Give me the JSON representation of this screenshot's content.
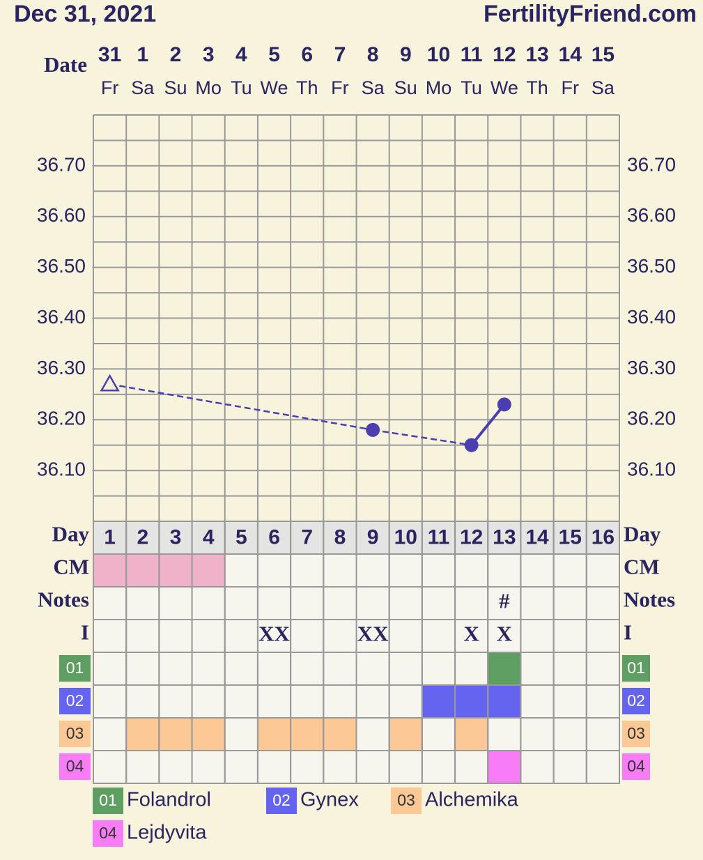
{
  "header": {
    "date": "Dec 31, 2021",
    "site": "FertilityFriend.com"
  },
  "chart_data": {
    "type": "line",
    "x_label": "Date",
    "categories": [
      "31",
      "1",
      "2",
      "3",
      "4",
      "5",
      "6",
      "7",
      "8",
      "9",
      "10",
      "11",
      "12",
      "13",
      "14",
      "15"
    ],
    "weekdays": [
      "Fr",
      "Sa",
      "Su",
      "Mo",
      "Tu",
      "We",
      "Th",
      "Fr",
      "Sa",
      "Su",
      "Mo",
      "Tu",
      "We",
      "Th",
      "Fr",
      "Sa"
    ],
    "series": [
      {
        "color": "#4b3fb0",
        "values": [
          36.27,
          null,
          null,
          null,
          null,
          null,
          null,
          null,
          36.18,
          null,
          null,
          36.15,
          36.23,
          null,
          null,
          null
        ]
      }
    ],
    "markers": [
      "triangle",
      null,
      null,
      null,
      null,
      null,
      null,
      null,
      "circle",
      null,
      null,
      "circle",
      "circle",
      null,
      null,
      null
    ],
    "ylim": [
      36.0,
      36.8
    ],
    "yticks": [
      {
        "value": 36.1,
        "label": "36.10"
      },
      {
        "value": 36.2,
        "label": "36.20"
      },
      {
        "value": 36.3,
        "label": "36.30"
      },
      {
        "value": 36.4,
        "label": "36.40"
      },
      {
        "value": 36.5,
        "label": "36.50"
      },
      {
        "value": 36.6,
        "label": "36.60"
      },
      {
        "value": 36.7,
        "label": "36.70"
      }
    ],
    "ygrid": [
      36.05,
      36.1,
      36.15,
      36.2,
      36.25,
      36.3,
      36.35,
      36.4,
      36.45,
      36.5,
      36.55,
      36.6,
      36.65,
      36.7,
      36.75
    ]
  },
  "table": {
    "day_label": "Day",
    "days": [
      1,
      2,
      3,
      4,
      5,
      6,
      7,
      8,
      9,
      10,
      11,
      12,
      13,
      14,
      15,
      16
    ],
    "rows": [
      {
        "label": "CM",
        "colors": [
          "#f0b2c8",
          "#f0b2c8",
          "#f0b2c8",
          "#f0b2c8",
          null,
          null,
          null,
          null,
          null,
          null,
          null,
          null,
          null,
          null,
          null,
          null
        ]
      },
      {
        "label": "Notes",
        "cells": [
          null,
          null,
          null,
          null,
          null,
          null,
          null,
          null,
          null,
          null,
          null,
          null,
          "#",
          null,
          null,
          null
        ]
      },
      {
        "label": "I",
        "cells": [
          null,
          null,
          null,
          null,
          null,
          "XX",
          null,
          null,
          "XX",
          null,
          null,
          "X",
          "X",
          null,
          null,
          null
        ]
      }
    ],
    "medications": [
      {
        "code": "01",
        "name": "Folandrol",
        "color": "#5f9e62",
        "active": [
          false,
          false,
          false,
          false,
          false,
          false,
          false,
          false,
          false,
          false,
          false,
          false,
          true,
          false,
          false,
          false
        ]
      },
      {
        "code": "02",
        "name": "Gynex",
        "color": "#6464f0",
        "active": [
          false,
          false,
          false,
          false,
          false,
          false,
          false,
          false,
          false,
          false,
          true,
          true,
          true,
          false,
          false,
          false
        ]
      },
      {
        "code": "03",
        "name": "Alchemika",
        "color": "#fcc896",
        "active": [
          false,
          true,
          true,
          true,
          false,
          true,
          true,
          true,
          false,
          true,
          false,
          true,
          false,
          false,
          false,
          false
        ]
      },
      {
        "code": "04",
        "name": "Lejdyvita",
        "color": "#f87cf5",
        "active": [
          false,
          false,
          false,
          false,
          false,
          false,
          false,
          false,
          false,
          false,
          false,
          false,
          true,
          false,
          false,
          false
        ]
      }
    ]
  }
}
